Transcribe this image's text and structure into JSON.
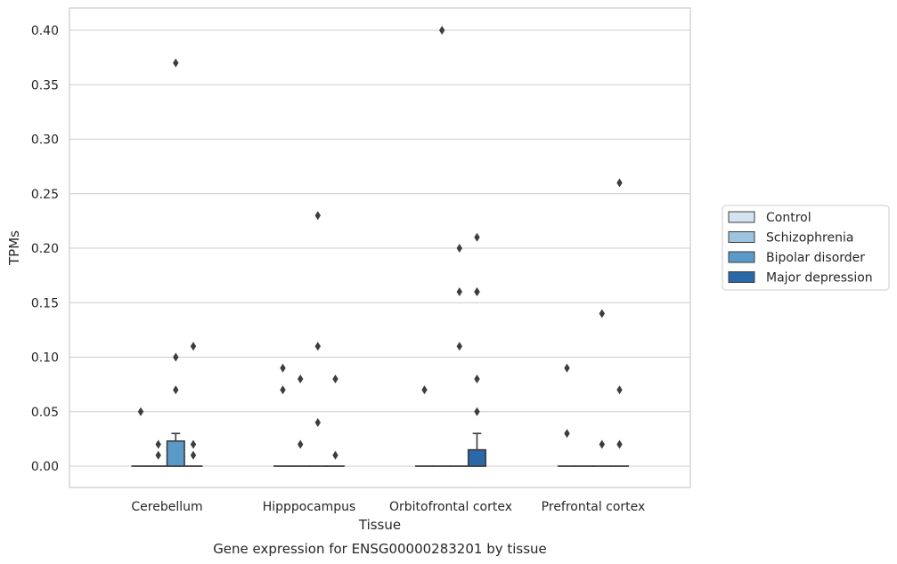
{
  "chart_data": {
    "type": "box",
    "title": "Gene expression for ENSG00000283201 by tissue",
    "xlabel": "Tissue",
    "ylabel": "TPMs",
    "ylim": [
      -0.02,
      0.42
    ],
    "yticks": [
      0.0,
      0.05,
      0.1,
      0.15,
      0.2,
      0.25,
      0.3,
      0.35,
      0.4
    ],
    "ytick_labels": [
      "0.00",
      "0.05",
      "0.10",
      "0.15",
      "0.20",
      "0.25",
      "0.30",
      "0.35",
      "0.40"
    ],
    "grid": "horizontal",
    "legend_position": "right",
    "categories": [
      "Cerebellum",
      "Hipppocampus",
      "Orbitofrontal cortex",
      "Prefrontal cortex"
    ],
    "series": [
      {
        "name": "Control",
        "color": "#d4e3f1",
        "boxes": [
          {
            "q1": 0,
            "median": 0,
            "q3": 0,
            "whisker_low": 0,
            "whisker_high": 0,
            "outliers": [
              0.05
            ]
          },
          {
            "q1": 0,
            "median": 0,
            "q3": 0,
            "whisker_low": 0,
            "whisker_high": 0,
            "outliers": [
              0.09,
              0.07
            ]
          },
          {
            "q1": 0,
            "median": 0,
            "q3": 0,
            "whisker_low": 0,
            "whisker_high": 0,
            "outliers": [
              0.07
            ]
          },
          {
            "q1": 0,
            "median": 0,
            "q3": 0,
            "whisker_low": 0,
            "whisker_high": 0,
            "outliers": [
              0.09,
              0.03
            ]
          }
        ]
      },
      {
        "name": "Schizophrenia",
        "color": "#9dc3de",
        "boxes": [
          {
            "q1": 0,
            "median": 0,
            "q3": 0,
            "whisker_low": 0,
            "whisker_high": 0,
            "outliers": [
              0.02,
              0.01
            ]
          },
          {
            "q1": 0,
            "median": 0,
            "q3": 0,
            "whisker_low": 0,
            "whisker_high": 0,
            "outliers": [
              0.08,
              0.02
            ]
          },
          {
            "q1": 0,
            "median": 0,
            "q3": 0,
            "whisker_low": 0,
            "whisker_high": 0,
            "outliers": [
              0.4
            ]
          },
          {
            "q1": 0,
            "median": 0,
            "q3": 0,
            "whisker_low": 0,
            "whisker_high": 0,
            "outliers": []
          }
        ]
      },
      {
        "name": "Bipolar disorder",
        "color": "#5a9ac8",
        "boxes": [
          {
            "q1": 0,
            "median": 0,
            "q3": 0.023,
            "whisker_low": 0,
            "whisker_high": 0.03,
            "outliers": [
              0.37,
              0.1,
              0.07
            ]
          },
          {
            "q1": 0,
            "median": 0,
            "q3": 0,
            "whisker_low": 0,
            "whisker_high": 0,
            "outliers": [
              0.23,
              0.11,
              0.04
            ]
          },
          {
            "q1": 0,
            "median": 0,
            "q3": 0,
            "whisker_low": 0,
            "whisker_high": 0,
            "outliers": [
              0.2,
              0.11
            ]
          },
          {
            "q1": 0,
            "median": 0,
            "q3": 0,
            "whisker_low": 0,
            "whisker_high": 0,
            "outliers": [
              0.14,
              0.02
            ]
          }
        ]
      },
      {
        "name": "Major depression",
        "color": "#2a68a8",
        "boxes": [
          {
            "q1": 0,
            "median": 0,
            "q3": 0,
            "whisker_low": 0,
            "whisker_high": 0,
            "outliers": [
              0.11,
              0.02,
              0.01
            ]
          },
          {
            "q1": 0,
            "median": 0,
            "q3": 0,
            "whisker_low": 0,
            "whisker_high": 0,
            "outliers": [
              0.08,
              0.01
            ]
          },
          {
            "q1": 0,
            "median": 0,
            "q3": 0.015,
            "whisker_low": 0,
            "whisker_high": 0.03,
            "outliers": [
              0.16,
              0.05
            ]
          },
          {
            "q1": 0,
            "median": 0,
            "q3": 0,
            "whisker_low": 0,
            "whisker_high": 0,
            "outliers": [
              0.26,
              0.07,
              0.02
            ]
          }
        ]
      }
    ],
    "extra_outliers": [
      {
        "category": 2,
        "group": 3,
        "values": [
          0.21,
          0.16,
          0.08
        ]
      },
      {
        "category": 2,
        "group": 2,
        "values": [
          0.16
        ]
      }
    ]
  }
}
